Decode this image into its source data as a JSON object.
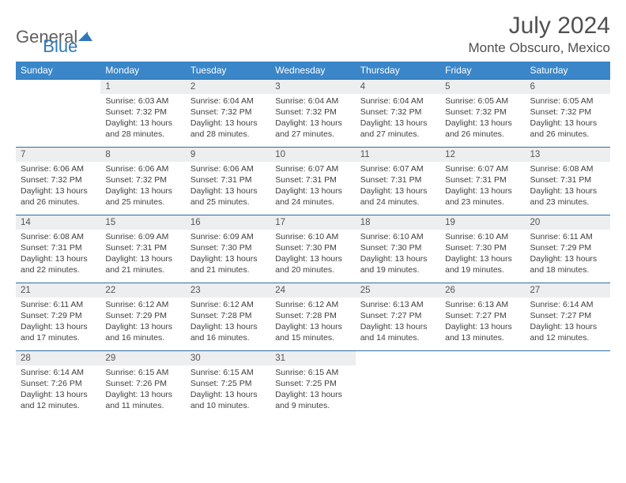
{
  "logo": {
    "part1": "General",
    "part2": "Blue",
    "logo_color": "#2e77b8"
  },
  "title": "July 2024",
  "location": "Monte Obscuro, Mexico",
  "colors": {
    "header_bg": "#3a86c8",
    "row_divider": "#2e6da4",
    "daynum_bg": "#eceeef",
    "text": "#404040"
  },
  "weekdays": [
    "Sunday",
    "Monday",
    "Tuesday",
    "Wednesday",
    "Thursday",
    "Friday",
    "Saturday"
  ],
  "weeks": [
    {
      "nums": [
        "",
        "1",
        "2",
        "3",
        "4",
        "5",
        "6"
      ],
      "days": [
        null,
        {
          "sunrise": "6:03 AM",
          "sunset": "7:32 PM",
          "daylight": "13 hours and 28 minutes."
        },
        {
          "sunrise": "6:04 AM",
          "sunset": "7:32 PM",
          "daylight": "13 hours and 28 minutes."
        },
        {
          "sunrise": "6:04 AM",
          "sunset": "7:32 PM",
          "daylight": "13 hours and 27 minutes."
        },
        {
          "sunrise": "6:04 AM",
          "sunset": "7:32 PM",
          "daylight": "13 hours and 27 minutes."
        },
        {
          "sunrise": "6:05 AM",
          "sunset": "7:32 PM",
          "daylight": "13 hours and 26 minutes."
        },
        {
          "sunrise": "6:05 AM",
          "sunset": "7:32 PM",
          "daylight": "13 hours and 26 minutes."
        }
      ]
    },
    {
      "nums": [
        "7",
        "8",
        "9",
        "10",
        "11",
        "12",
        "13"
      ],
      "days": [
        {
          "sunrise": "6:06 AM",
          "sunset": "7:32 PM",
          "daylight": "13 hours and 26 minutes."
        },
        {
          "sunrise": "6:06 AM",
          "sunset": "7:32 PM",
          "daylight": "13 hours and 25 minutes."
        },
        {
          "sunrise": "6:06 AM",
          "sunset": "7:31 PM",
          "daylight": "13 hours and 25 minutes."
        },
        {
          "sunrise": "6:07 AM",
          "sunset": "7:31 PM",
          "daylight": "13 hours and 24 minutes."
        },
        {
          "sunrise": "6:07 AM",
          "sunset": "7:31 PM",
          "daylight": "13 hours and 24 minutes."
        },
        {
          "sunrise": "6:07 AM",
          "sunset": "7:31 PM",
          "daylight": "13 hours and 23 minutes."
        },
        {
          "sunrise": "6:08 AM",
          "sunset": "7:31 PM",
          "daylight": "13 hours and 23 minutes."
        }
      ]
    },
    {
      "nums": [
        "14",
        "15",
        "16",
        "17",
        "18",
        "19",
        "20"
      ],
      "days": [
        {
          "sunrise": "6:08 AM",
          "sunset": "7:31 PM",
          "daylight": "13 hours and 22 minutes."
        },
        {
          "sunrise": "6:09 AM",
          "sunset": "7:31 PM",
          "daylight": "13 hours and 21 minutes."
        },
        {
          "sunrise": "6:09 AM",
          "sunset": "7:30 PM",
          "daylight": "13 hours and 21 minutes."
        },
        {
          "sunrise": "6:10 AM",
          "sunset": "7:30 PM",
          "daylight": "13 hours and 20 minutes."
        },
        {
          "sunrise": "6:10 AM",
          "sunset": "7:30 PM",
          "daylight": "13 hours and 19 minutes."
        },
        {
          "sunrise": "6:10 AM",
          "sunset": "7:30 PM",
          "daylight": "13 hours and 19 minutes."
        },
        {
          "sunrise": "6:11 AM",
          "sunset": "7:29 PM",
          "daylight": "13 hours and 18 minutes."
        }
      ]
    },
    {
      "nums": [
        "21",
        "22",
        "23",
        "24",
        "25",
        "26",
        "27"
      ],
      "days": [
        {
          "sunrise": "6:11 AM",
          "sunset": "7:29 PM",
          "daylight": "13 hours and 17 minutes."
        },
        {
          "sunrise": "6:12 AM",
          "sunset": "7:29 PM",
          "daylight": "13 hours and 16 minutes."
        },
        {
          "sunrise": "6:12 AM",
          "sunset": "7:28 PM",
          "daylight": "13 hours and 16 minutes."
        },
        {
          "sunrise": "6:12 AM",
          "sunset": "7:28 PM",
          "daylight": "13 hours and 15 minutes."
        },
        {
          "sunrise": "6:13 AM",
          "sunset": "7:27 PM",
          "daylight": "13 hours and 14 minutes."
        },
        {
          "sunrise": "6:13 AM",
          "sunset": "7:27 PM",
          "daylight": "13 hours and 13 minutes."
        },
        {
          "sunrise": "6:14 AM",
          "sunset": "7:27 PM",
          "daylight": "13 hours and 12 minutes."
        }
      ]
    },
    {
      "nums": [
        "28",
        "29",
        "30",
        "31",
        "",
        "",
        ""
      ],
      "days": [
        {
          "sunrise": "6:14 AM",
          "sunset": "7:26 PM",
          "daylight": "13 hours and 12 minutes."
        },
        {
          "sunrise": "6:15 AM",
          "sunset": "7:26 PM",
          "daylight": "13 hours and 11 minutes."
        },
        {
          "sunrise": "6:15 AM",
          "sunset": "7:25 PM",
          "daylight": "13 hours and 10 minutes."
        },
        {
          "sunrise": "6:15 AM",
          "sunset": "7:25 PM",
          "daylight": "13 hours and 9 minutes."
        },
        null,
        null,
        null
      ]
    }
  ],
  "labels": {
    "sunrise": "Sunrise:",
    "sunset": "Sunset:",
    "daylight": "Daylight:"
  }
}
